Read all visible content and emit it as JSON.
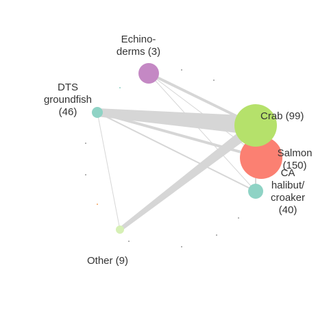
{
  "network": {
    "nodes": [
      {
        "id": "echino",
        "lines": [
          "Echino-",
          "derms (3)"
        ],
        "color": "#c488c4"
      },
      {
        "id": "dts",
        "lines": [
          "DTS",
          "groundfish",
          "(46)"
        ],
        "color": "#8fd3c5"
      },
      {
        "id": "crab",
        "lines": [
          "Crab (99)"
        ],
        "color": "#b5e16b"
      },
      {
        "id": "salmon",
        "lines": [
          "Salmon",
          "(150)"
        ],
        "color": "#fb8072"
      },
      {
        "id": "ca_halibut",
        "lines": [
          "CA",
          "halibut/",
          "croaker",
          "(40)"
        ],
        "color": "#8fd3c5"
      },
      {
        "id": "other",
        "lines": [
          "Other (9)"
        ],
        "color": "#d6f0b5"
      }
    ],
    "edge_color": "#d6d6d6",
    "minor_dot_colors": [
      "#9a9a9a",
      "#f4a460",
      "#8fd3c5"
    ]
  }
}
